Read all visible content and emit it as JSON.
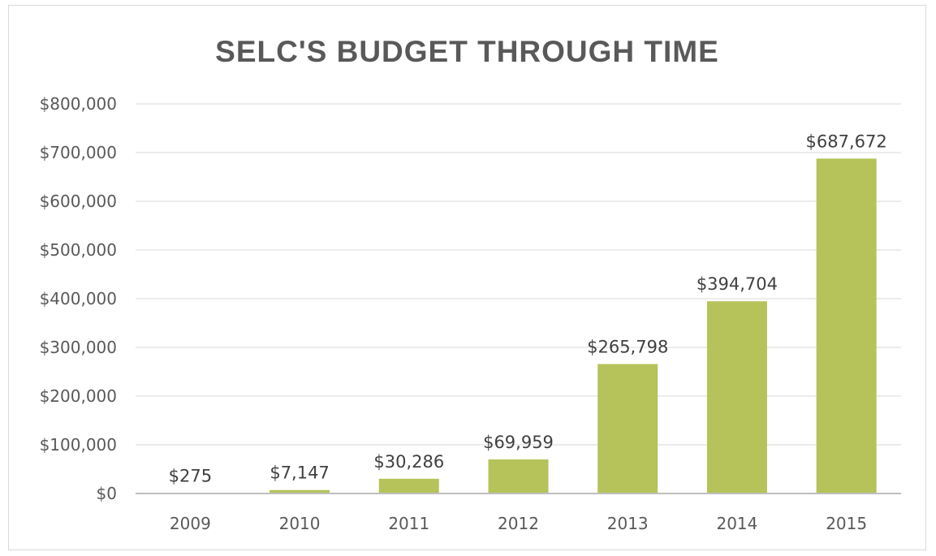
{
  "chart_data": {
    "type": "bar",
    "title": "SELC'S BUDGET THROUGH TIME",
    "xlabel": "",
    "ylabel": "",
    "categories": [
      "2009",
      "2010",
      "2011",
      "2012",
      "2013",
      "2014",
      "2015"
    ],
    "values": [
      275,
      7147,
      30286,
      69959,
      265798,
      394704,
      687672
    ],
    "data_labels": [
      "$275",
      "$7,147",
      "$30,286",
      "$69,959",
      "$265,798",
      "$394,704",
      "$687,672"
    ],
    "ylim": [
      0,
      800000
    ],
    "y_ticks": [
      0,
      100000,
      200000,
      300000,
      400000,
      500000,
      600000,
      700000,
      800000
    ],
    "y_tick_labels": [
      "$0",
      "$100,000",
      "$200,000",
      "$300,000",
      "$400,000",
      "$500,000",
      "$600,000",
      "$700,000",
      "$800,000"
    ],
    "grid": true,
    "legend": "none",
    "colors": {
      "bar": "#b5c35a",
      "grid": "#e6e6e6",
      "axis": "#bfbfbf",
      "title": "#595959",
      "tick_text": "#595959",
      "label_text": "#404040"
    }
  }
}
